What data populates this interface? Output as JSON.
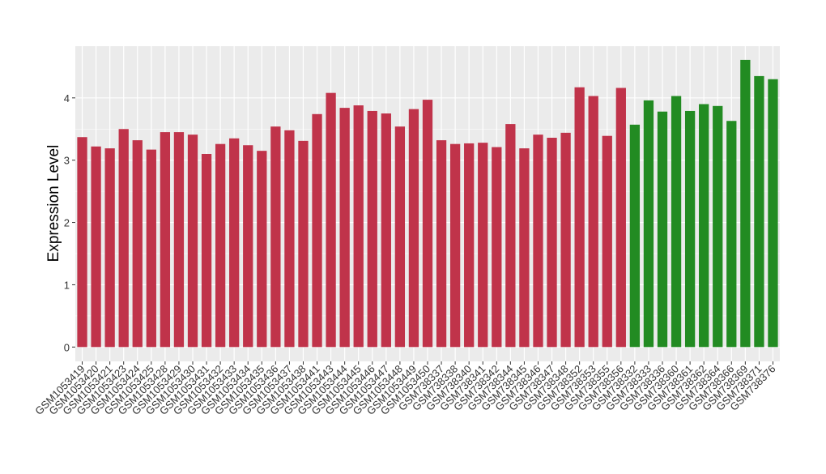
{
  "chart_data": {
    "type": "bar",
    "y_label": "Expression Level",
    "categories": [
      "GSM1053419",
      "GSM1053420",
      "GSM1053421",
      "GSM1053423",
      "GSM1053424",
      "GSM1053425",
      "GSM1053428",
      "GSM1053429",
      "GSM1053430",
      "GSM1053431",
      "GSM1053432",
      "GSM1053433",
      "GSM1053434",
      "GSM1053435",
      "GSM1053436",
      "GSM1053437",
      "GSM1053438",
      "GSM1053441",
      "GSM1053443",
      "GSM1053444",
      "GSM1053445",
      "GSM1053446",
      "GSM1053447",
      "GSM1053448",
      "GSM1053449",
      "GSM1053450",
      "GSM738337",
      "GSM738338",
      "GSM738340",
      "GSM738341",
      "GSM738342",
      "GSM738344",
      "GSM738345",
      "GSM738346",
      "GSM738347",
      "GSM738348",
      "GSM738352",
      "GSM738353",
      "GSM738355",
      "GSM738356",
      "GSM738332",
      "GSM738333",
      "GSM738336",
      "GSM738360",
      "GSM738361",
      "GSM738362",
      "GSM738364",
      "GSM738366",
      "GSM738369",
      "GSM738371",
      "GSM738376"
    ],
    "values": [
      3.37,
      3.22,
      3.19,
      3.5,
      3.32,
      3.17,
      3.45,
      3.45,
      3.41,
      3.1,
      3.26,
      3.35,
      3.24,
      3.15,
      3.54,
      3.48,
      3.31,
      3.74,
      4.08,
      3.84,
      3.88,
      3.79,
      3.75,
      3.54,
      3.82,
      3.97,
      3.32,
      3.26,
      3.27,
      3.28,
      3.21,
      3.58,
      3.19,
      3.41,
      3.36,
      3.44,
      4.17,
      4.03,
      3.39,
      4.16,
      3.57,
      3.96,
      3.78,
      4.03,
      3.79,
      3.9,
      3.87,
      3.63,
      4.61,
      4.35,
      4.3
    ],
    "colors": [
      "#c0334a",
      "#c0334a",
      "#c0334a",
      "#c0334a",
      "#c0334a",
      "#c0334a",
      "#c0334a",
      "#c0334a",
      "#c0334a",
      "#c0334a",
      "#c0334a",
      "#c0334a",
      "#c0334a",
      "#c0334a",
      "#c0334a",
      "#c0334a",
      "#c0334a",
      "#c0334a",
      "#c0334a",
      "#c0334a",
      "#c0334a",
      "#c0334a",
      "#c0334a",
      "#c0334a",
      "#c0334a",
      "#c0334a",
      "#c0334a",
      "#c0334a",
      "#c0334a",
      "#c0334a",
      "#c0334a",
      "#c0334a",
      "#c0334a",
      "#c0334a",
      "#c0334a",
      "#c0334a",
      "#c0334a",
      "#c0334a",
      "#c0334a",
      "#c0334a",
      "#228b22",
      "#228b22",
      "#228b22",
      "#228b22",
      "#228b22",
      "#228b22",
      "#228b22",
      "#228b22",
      "#228b22",
      "#228b22",
      "#228b22"
    ],
    "ylim": [
      -0.23,
      4.83
    ],
    "yticks": [
      0,
      1,
      2,
      3,
      4
    ],
    "grid": true
  }
}
